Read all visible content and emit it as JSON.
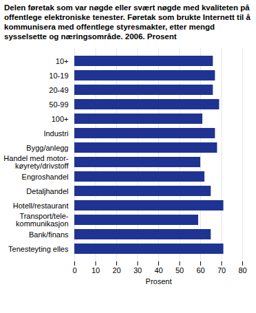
{
  "chart_data": {
    "type": "bar",
    "orientation": "horizontal",
    "title": "Delen føretak som var nøgde eller svært nøgde med kvaliteten på offentlege elektroniske tenester. Føretak som brukte Internett til å kommunisera med offentlege styresmakter, etter mengd sysselsette og næringsområde. 2006. Prosent",
    "x_label": "Prosent",
    "categories": [
      "10+",
      "10-19",
      "20-49",
      "50-99",
      "100+",
      "Industri",
      "Bygg/anlegg",
      "Handel med motor-\nkøyrety/drivstoff",
      "Engroshandel",
      "Detaljhandel",
      "Hotell/restaurant",
      "Transport/tele-\nkommunikasjon",
      "Bank/finans",
      "Tenesteyting elles"
    ],
    "values": [
      66,
      67,
      66,
      69,
      61,
      67,
      68,
      60,
      62,
      65,
      71,
      59,
      65,
      71
    ],
    "color": "#1f3393",
    "xlim": [
      0,
      80
    ],
    "xticks": [
      0,
      10,
      20,
      30,
      40,
      50,
      60,
      70,
      80
    ],
    "grid": true
  }
}
